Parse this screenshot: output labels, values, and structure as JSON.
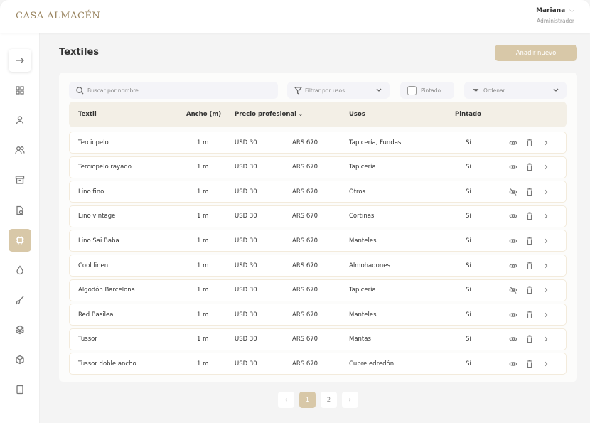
{
  "header": {
    "logo": "CASA ALMACÉN",
    "user_name": "Mariana",
    "user_role": "Administrador"
  },
  "sidebar": {
    "items": [
      {
        "icon": "arrow-right-icon"
      },
      {
        "icon": "grid-icon"
      },
      {
        "icon": "user-icon"
      },
      {
        "icon": "users-icon"
      },
      {
        "icon": "archive-icon"
      },
      {
        "icon": "document-icon"
      },
      {
        "icon": "chip-icon",
        "active": true
      },
      {
        "icon": "drop-icon"
      },
      {
        "icon": "brush-icon"
      },
      {
        "icon": "layers-icon"
      },
      {
        "icon": "box-icon"
      },
      {
        "icon": "tablet-icon"
      }
    ]
  },
  "page": {
    "title": "Textiles",
    "add_button": "Añadir nuevo"
  },
  "filters": {
    "search_placeholder": "Buscar por nombre",
    "filter_placeholder": "Filtrar por usos",
    "pintado_label": "Pintado",
    "order_placeholder": "Ordenar"
  },
  "table": {
    "headers": {
      "textil": "Textil",
      "ancho": "Ancho (m)",
      "precio": "Precio profesional",
      "usos": "Usos",
      "pintado": "Pintado"
    },
    "rows": [
      {
        "textil": "Terciopelo",
        "ancho": "1 m",
        "usd": "USD 30",
        "ars": "ARS 670",
        "usos": "Tapicería, Fundas",
        "pintado": "Sí",
        "visible": true
      },
      {
        "textil": "Terciopelo rayado",
        "ancho": "1 m",
        "usd": "USD 30",
        "ars": "ARS 670",
        "usos": "Tapicería",
        "pintado": "Sí",
        "visible": true
      },
      {
        "textil": "Lino fino",
        "ancho": "1 m",
        "usd": "USD 30",
        "ars": "ARS 670",
        "usos": "Otros",
        "pintado": "Sí",
        "visible": false
      },
      {
        "textil": "Lino vintage",
        "ancho": "1 m",
        "usd": "USD 30",
        "ars": "ARS 670",
        "usos": "Cortinas",
        "pintado": "Sí",
        "visible": true
      },
      {
        "textil": "Lino Sai Baba",
        "ancho": "1 m",
        "usd": "USD 30",
        "ars": "ARS 670",
        "usos": "Manteles",
        "pintado": "Sí",
        "visible": true
      },
      {
        "textil": "Cool linen",
        "ancho": "1 m",
        "usd": "USD 30",
        "ars": "ARS 670",
        "usos": "Almohadones",
        "pintado": "Sí",
        "visible": true
      },
      {
        "textil": "Algodón Barcelona",
        "ancho": "1 m",
        "usd": "USD 30",
        "ars": "ARS 670",
        "usos": "Tapicería",
        "pintado": "Sí",
        "visible": false
      },
      {
        "textil": "Red Basilea",
        "ancho": "1 m",
        "usd": "USD 30",
        "ars": "ARS 670",
        "usos": "Manteles",
        "pintado": "Sí",
        "visible": true
      },
      {
        "textil": "Tussor",
        "ancho": "1 m",
        "usd": "USD 30",
        "ars": "ARS 670",
        "usos": "Mantas",
        "pintado": "Sí",
        "visible": true
      },
      {
        "textil": "Tussor doble ancho",
        "ancho": "1 m",
        "usd": "USD 30",
        "ars": "ARS 670",
        "usos": "Cubre edredón",
        "pintado": "Sí",
        "visible": true
      }
    ]
  },
  "pagination": {
    "pages": [
      "1",
      "2"
    ],
    "current": "1"
  },
  "colors": {
    "accent": "#d8c8a8",
    "header_row": "#f3efe6",
    "logo": "#9a8560"
  }
}
